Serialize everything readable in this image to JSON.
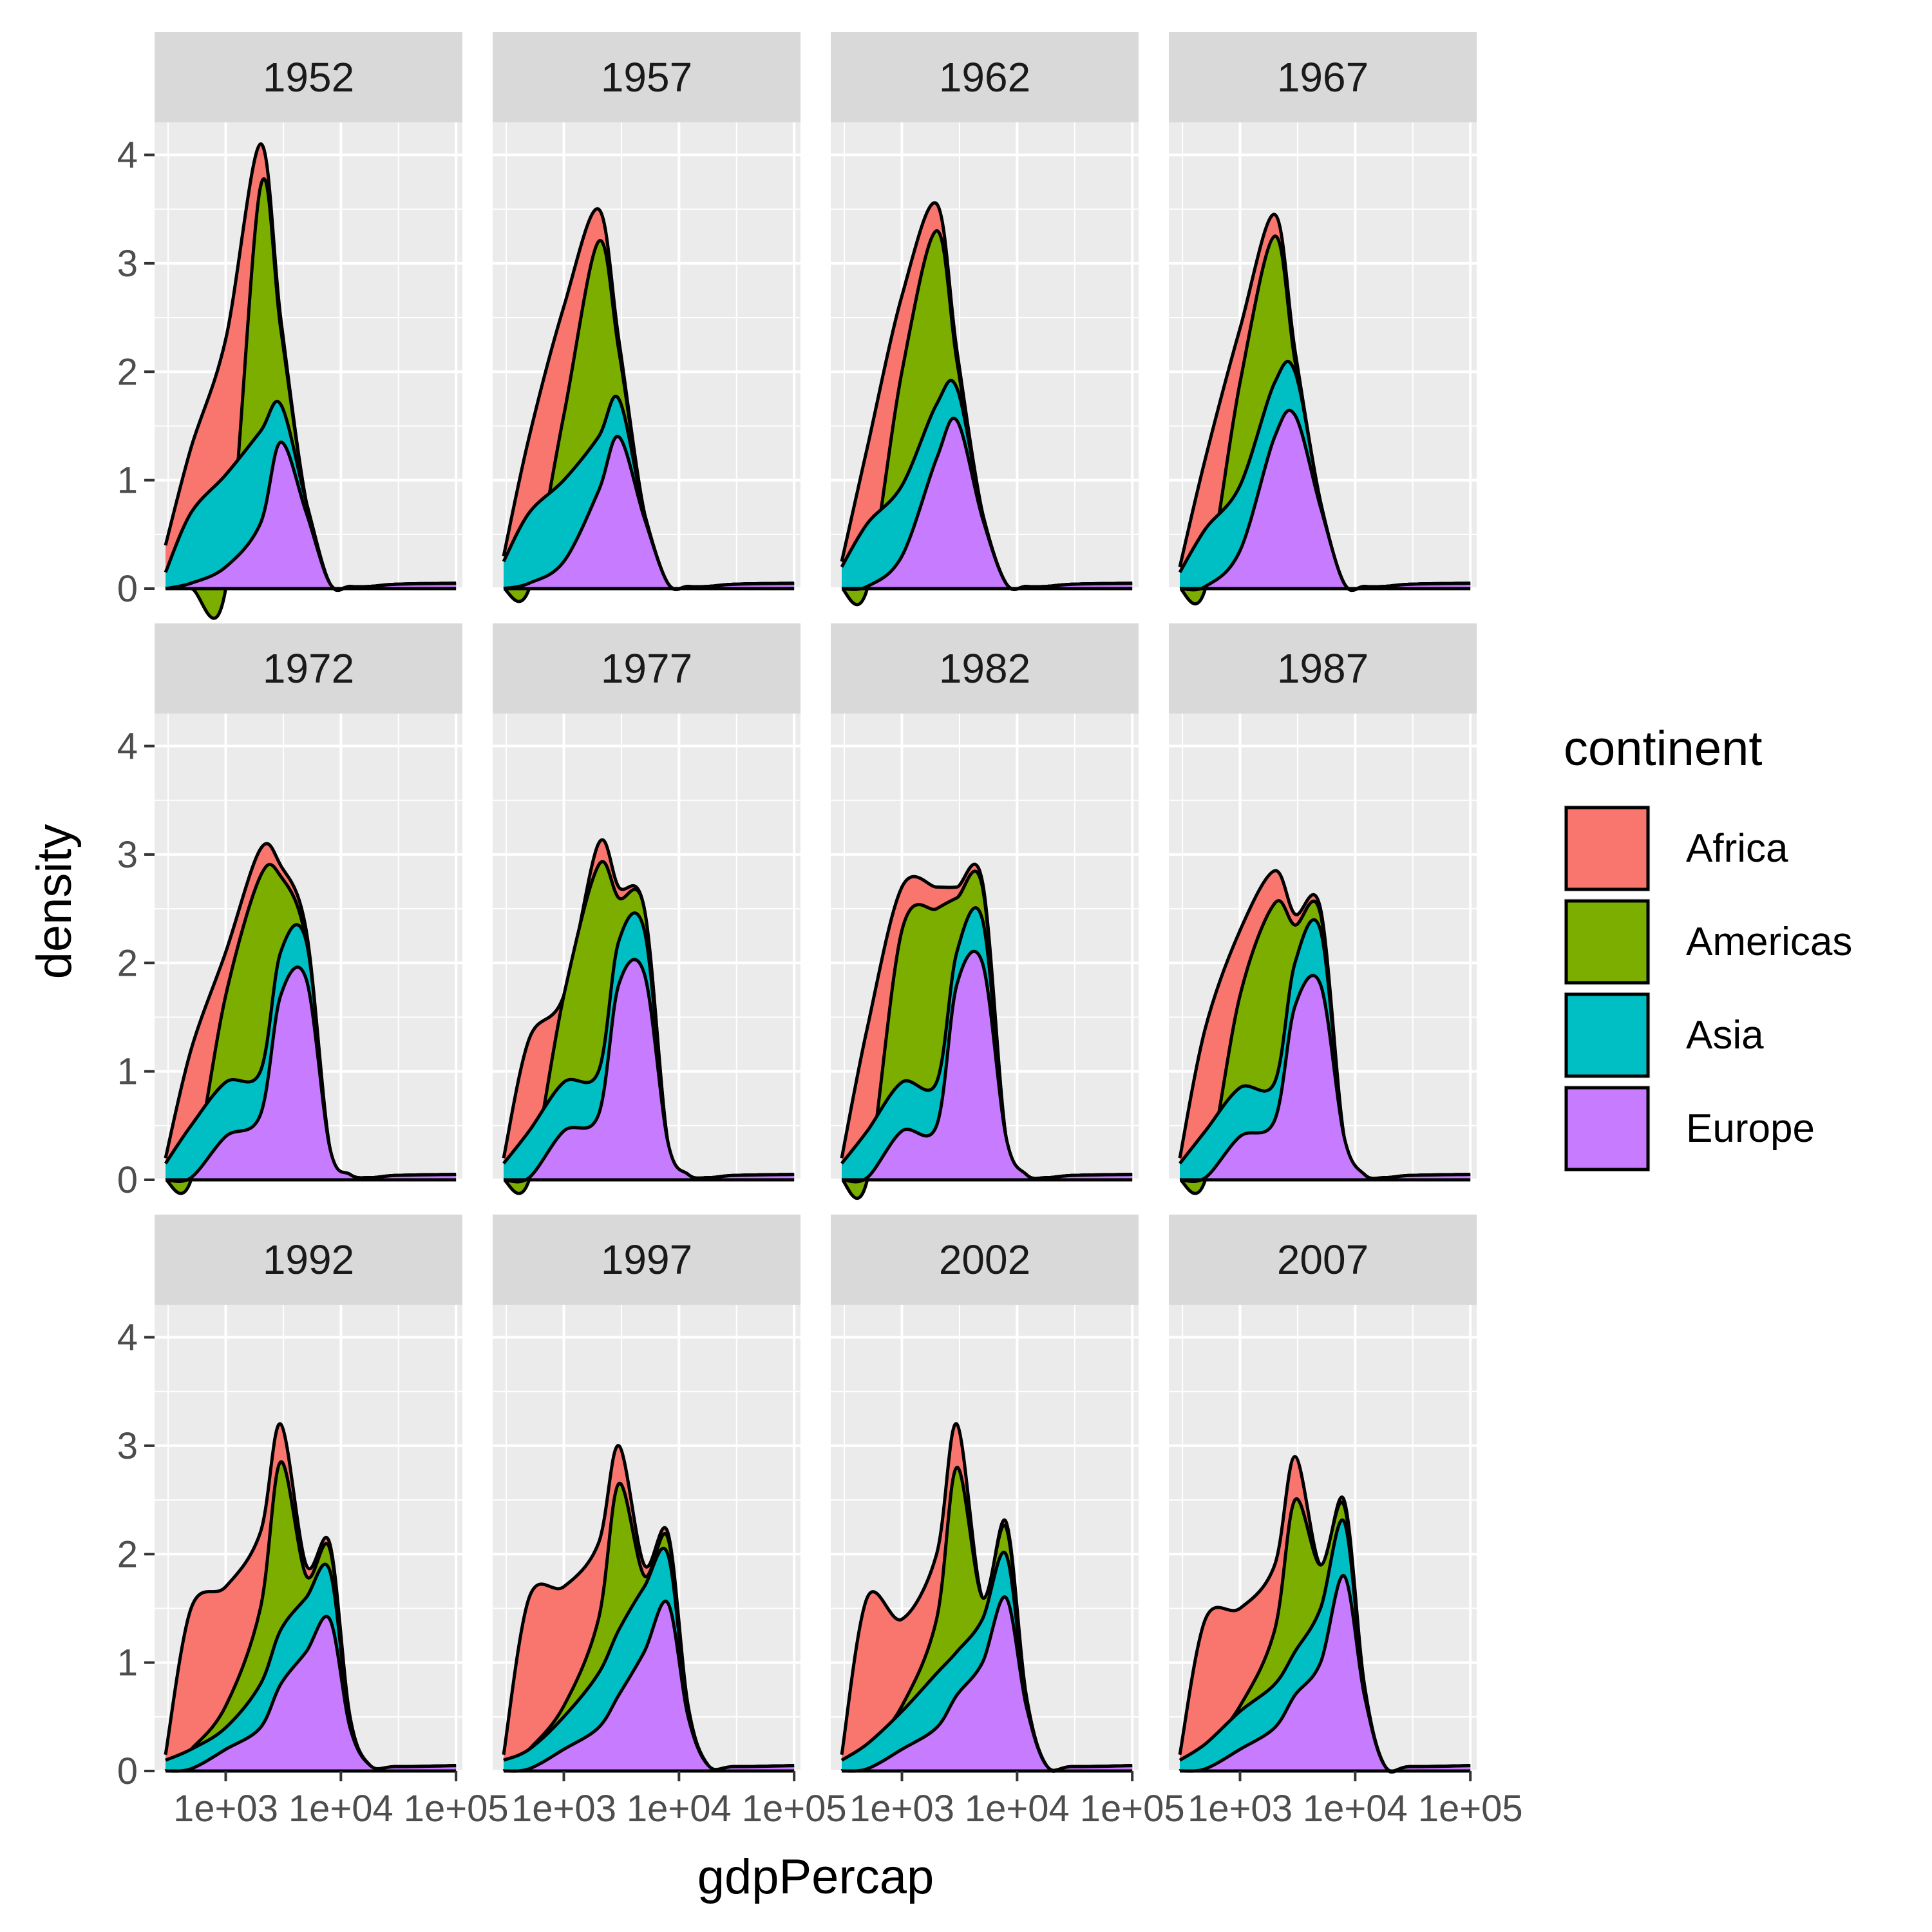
{
  "chart_data": {
    "type": "area",
    "stacked": true,
    "x_scale": "log10",
    "xlabel": "gdpPercap",
    "ylabel": "density",
    "xlim": [
      241,
      113523
    ],
    "ylim": [
      0,
      4.3
    ],
    "x_ticks": [
      1000,
      10000,
      100000
    ],
    "x_tick_labels": [
      "1e+03",
      "1e+04",
      "1e+05"
    ],
    "y_ticks": [
      0,
      1,
      2,
      3,
      4
    ],
    "y_tick_labels": [
      "0",
      "1",
      "2",
      "3",
      "4"
    ],
    "grid": true,
    "legend": {
      "title": "continent",
      "position": "right",
      "entries": [
        "Africa",
        "Americas",
        "Asia",
        "Europe"
      ]
    },
    "colors": {
      "Africa": "#F8766D",
      "Americas": "#7CAE00",
      "Asia": "#00BFC4",
      "Europe": "#C77CFF",
      "panel_background": "#EBEBEB",
      "strip_background": "#D9D9D9",
      "grid": "#FFFFFF"
    },
    "stack_order_top_to_bottom": [
      "Africa",
      "Americas",
      "Asia",
      "Europe"
    ],
    "x": [
      300,
      500,
      1000,
      2000,
      3000,
      5000,
      8000,
      12000,
      18000,
      30000,
      100000
    ],
    "facets": [
      {
        "label": "1952",
        "series": [
          {
            "name": "Africa",
            "values": [
              0.4,
              1.3,
              2.3,
              4.1,
              2.5,
              0.8,
              0.05,
              0.02,
              0.02,
              0.04,
              0.05
            ]
          },
          {
            "name": "Americas",
            "values": [
              0.0,
              0.0,
              0.0,
              3.7,
              2.4,
              0.8,
              0.05,
              0.02,
              0.02,
              0.04,
              0.05
            ]
          },
          {
            "name": "Asia",
            "values": [
              0.15,
              0.7,
              1.05,
              1.45,
              1.7,
              0.8,
              0.05,
              0.02,
              0.02,
              0.04,
              0.05
            ]
          },
          {
            "name": "Europe",
            "values": [
              0.0,
              0.05,
              0.2,
              0.6,
              1.35,
              0.7,
              0.05,
              0.02,
              0.02,
              0.04,
              0.05
            ]
          }
        ]
      },
      {
        "label": "1957",
        "series": [
          {
            "name": "Africa",
            "values": [
              0.3,
              1.4,
              2.6,
              3.5,
              2.3,
              0.7,
              0.05,
              0.02,
              0.02,
              0.04,
              0.05
            ]
          },
          {
            "name": "Americas",
            "values": [
              0.0,
              0.0,
              1.6,
              3.2,
              2.2,
              0.7,
              0.05,
              0.02,
              0.02,
              0.04,
              0.05
            ]
          },
          {
            "name": "Asia",
            "values": [
              0.25,
              0.7,
              1.0,
              1.4,
              1.75,
              0.7,
              0.05,
              0.02,
              0.02,
              0.04,
              0.05
            ]
          },
          {
            "name": "Europe",
            "values": [
              0.0,
              0.05,
              0.25,
              0.9,
              1.4,
              0.65,
              0.05,
              0.02,
              0.02,
              0.04,
              0.05
            ]
          }
        ]
      },
      {
        "label": "1962",
        "series": [
          {
            "name": "Africa",
            "values": [
              0.25,
              1.3,
              2.7,
              3.55,
              2.2,
              0.7,
              0.05,
              0.02,
              0.02,
              0.04,
              0.05
            ]
          },
          {
            "name": "Americas",
            "values": [
              0.0,
              0.0,
              2.0,
              3.3,
              2.1,
              0.7,
              0.05,
              0.02,
              0.02,
              0.04,
              0.05
            ]
          },
          {
            "name": "Asia",
            "values": [
              0.2,
              0.6,
              0.95,
              1.7,
              1.85,
              0.7,
              0.05,
              0.02,
              0.02,
              0.04,
              0.05
            ]
          },
          {
            "name": "Europe",
            "values": [
              0.0,
              0.02,
              0.3,
              1.2,
              1.55,
              0.65,
              0.05,
              0.02,
              0.02,
              0.04,
              0.05
            ]
          }
        ]
      },
      {
        "label": "1967",
        "series": [
          {
            "name": "Africa",
            "values": [
              0.2,
              1.2,
              2.4,
              3.45,
              2.2,
              0.8,
              0.05,
              0.02,
              0.02,
              0.04,
              0.05
            ]
          },
          {
            "name": "Americas",
            "values": [
              0.0,
              0.0,
              1.9,
              3.25,
              2.1,
              0.8,
              0.05,
              0.02,
              0.02,
              0.04,
              0.05
            ]
          },
          {
            "name": "Asia",
            "values": [
              0.15,
              0.55,
              0.95,
              1.9,
              2.0,
              0.8,
              0.05,
              0.02,
              0.02,
              0.04,
              0.05
            ]
          },
          {
            "name": "Europe",
            "values": [
              0.0,
              0.02,
              0.35,
              1.4,
              1.6,
              0.75,
              0.05,
              0.02,
              0.02,
              0.04,
              0.05
            ]
          }
        ]
      },
      {
        "label": "1972",
        "series": [
          {
            "name": "Africa",
            "values": [
              0.2,
              1.2,
              2.1,
              3.05,
              2.9,
              2.3,
              0.3,
              0.05,
              0.02,
              0.04,
              0.05
            ]
          },
          {
            "name": "Americas",
            "values": [
              0.0,
              0.0,
              1.7,
              2.8,
              2.8,
              2.2,
              0.3,
              0.05,
              0.02,
              0.04,
              0.05
            ]
          },
          {
            "name": "Asia",
            "values": [
              0.15,
              0.5,
              0.9,
              1.0,
              2.1,
              2.2,
              0.3,
              0.05,
              0.02,
              0.04,
              0.05
            ]
          },
          {
            "name": "Europe",
            "values": [
              0.0,
              0.02,
              0.4,
              0.6,
              1.7,
              1.85,
              0.3,
              0.05,
              0.02,
              0.04,
              0.05
            ]
          }
        ]
      },
      {
        "label": "1977",
        "series": [
          {
            "name": "Africa",
            "values": [
              0.2,
              1.3,
              1.7,
              3.1,
              2.7,
              2.5,
              0.35,
              0.05,
              0.02,
              0.04,
              0.05
            ]
          },
          {
            "name": "Americas",
            "values": [
              0.0,
              0.0,
              1.7,
              2.9,
              2.6,
              2.5,
              0.35,
              0.05,
              0.02,
              0.04,
              0.05
            ]
          },
          {
            "name": "Asia",
            "values": [
              0.15,
              0.45,
              0.9,
              1.0,
              2.2,
              2.3,
              0.35,
              0.05,
              0.02,
              0.04,
              0.05
            ]
          },
          {
            "name": "Europe",
            "values": [
              0.0,
              0.02,
              0.45,
              0.6,
              1.8,
              1.9,
              0.35,
              0.05,
              0.02,
              0.04,
              0.05
            ]
          }
        ]
      },
      {
        "label": "1982",
        "series": [
          {
            "name": "Africa",
            "values": [
              0.2,
              1.4,
              2.7,
              2.7,
              2.7,
              2.75,
              0.4,
              0.05,
              0.02,
              0.04,
              0.05
            ]
          },
          {
            "name": "Americas",
            "values": [
              0.0,
              0.0,
              2.3,
              2.5,
              2.6,
              2.7,
              0.4,
              0.05,
              0.02,
              0.04,
              0.05
            ]
          },
          {
            "name": "Asia",
            "values": [
              0.15,
              0.45,
              0.9,
              0.9,
              2.1,
              2.4,
              0.4,
              0.05,
              0.02,
              0.04,
              0.05
            ]
          },
          {
            "name": "Europe",
            "values": [
              0.0,
              0.02,
              0.45,
              0.5,
              1.8,
              2.0,
              0.4,
              0.05,
              0.02,
              0.04,
              0.05
            ]
          }
        ]
      },
      {
        "label": "1987",
        "series": [
          {
            "name": "Africa",
            "values": [
              0.2,
              1.4,
              2.3,
              2.85,
              2.45,
              2.5,
              0.4,
              0.05,
              0.02,
              0.04,
              0.05
            ]
          },
          {
            "name": "Americas",
            "values": [
              0.0,
              0.0,
              1.7,
              2.55,
              2.35,
              2.45,
              0.4,
              0.05,
              0.02,
              0.04,
              0.05
            ]
          },
          {
            "name": "Asia",
            "values": [
              0.15,
              0.45,
              0.85,
              0.9,
              2.0,
              2.3,
              0.4,
              0.05,
              0.02,
              0.04,
              0.05
            ]
          },
          {
            "name": "Europe",
            "values": [
              0.0,
              0.02,
              0.4,
              0.55,
              1.6,
              1.8,
              0.4,
              0.05,
              0.02,
              0.04,
              0.05
            ]
          }
        ]
      },
      {
        "label": "1992",
        "series": [
          {
            "name": "Africa",
            "values": [
              0.15,
              1.5,
              1.7,
              2.2,
              3.2,
              1.9,
              2.1,
              0.5,
              0.05,
              0.04,
              0.05
            ]
          },
          {
            "name": "Americas",
            "values": [
              0.0,
              0.2,
              0.6,
              1.5,
              2.85,
              1.8,
              2.05,
              0.5,
              0.05,
              0.04,
              0.05
            ]
          },
          {
            "name": "Asia",
            "values": [
              0.1,
              0.2,
              0.4,
              0.8,
              1.3,
              1.6,
              1.85,
              0.45,
              0.05,
              0.04,
              0.05
            ]
          },
          {
            "name": "Europe",
            "values": [
              0.0,
              0.02,
              0.2,
              0.4,
              0.8,
              1.1,
              1.4,
              0.4,
              0.05,
              0.04,
              0.05
            ]
          }
        ]
      },
      {
        "label": "1997",
        "series": [
          {
            "name": "Africa",
            "values": [
              0.15,
              1.6,
              1.7,
              2.1,
              3.0,
              1.9,
              2.2,
              0.6,
              0.05,
              0.04,
              0.05
            ]
          },
          {
            "name": "Americas",
            "values": [
              0.0,
              0.2,
              0.6,
              1.4,
              2.65,
              1.8,
              2.15,
              0.6,
              0.05,
              0.04,
              0.05
            ]
          },
          {
            "name": "Asia",
            "values": [
              0.1,
              0.2,
              0.5,
              0.9,
              1.3,
              1.7,
              2.0,
              0.55,
              0.05,
              0.04,
              0.05
            ]
          },
          {
            "name": "Europe",
            "values": [
              0.0,
              0.02,
              0.2,
              0.4,
              0.7,
              1.1,
              1.55,
              0.5,
              0.05,
              0.04,
              0.05
            ]
          }
        ]
      },
      {
        "label": "2002",
        "series": [
          {
            "name": "Africa",
            "values": [
              0.15,
              1.6,
              1.4,
              2.0,
              3.2,
              1.6,
              2.3,
              0.7,
              0.05,
              0.04,
              0.05
            ]
          },
          {
            "name": "Americas",
            "values": [
              0.0,
              0.2,
              0.6,
              1.4,
              2.8,
              1.6,
              2.25,
              0.7,
              0.05,
              0.04,
              0.05
            ]
          },
          {
            "name": "Asia",
            "values": [
              0.1,
              0.25,
              0.55,
              0.9,
              1.1,
              1.4,
              2.0,
              0.65,
              0.05,
              0.04,
              0.05
            ]
          },
          {
            "name": "Europe",
            "values": [
              0.0,
              0.02,
              0.2,
              0.4,
              0.7,
              1.0,
              1.6,
              0.6,
              0.05,
              0.04,
              0.05
            ]
          }
        ]
      },
      {
        "label": "2007",
        "series": [
          {
            "name": "Africa",
            "values": [
              0.15,
              1.4,
              1.5,
              1.9,
              2.9,
              1.9,
              2.5,
              0.8,
              0.05,
              0.04,
              0.05
            ]
          },
          {
            "name": "Americas",
            "values": [
              0.0,
              0.2,
              0.6,
              1.3,
              2.5,
              1.9,
              2.45,
              0.8,
              0.05,
              0.04,
              0.05
            ]
          },
          {
            "name": "Asia",
            "values": [
              0.1,
              0.25,
              0.55,
              0.8,
              1.1,
              1.5,
              2.3,
              0.75,
              0.05,
              0.04,
              0.05
            ]
          },
          {
            "name": "Europe",
            "values": [
              0.0,
              0.02,
              0.2,
              0.4,
              0.7,
              1.0,
              1.8,
              0.7,
              0.05,
              0.04,
              0.05
            ]
          }
        ]
      }
    ]
  }
}
